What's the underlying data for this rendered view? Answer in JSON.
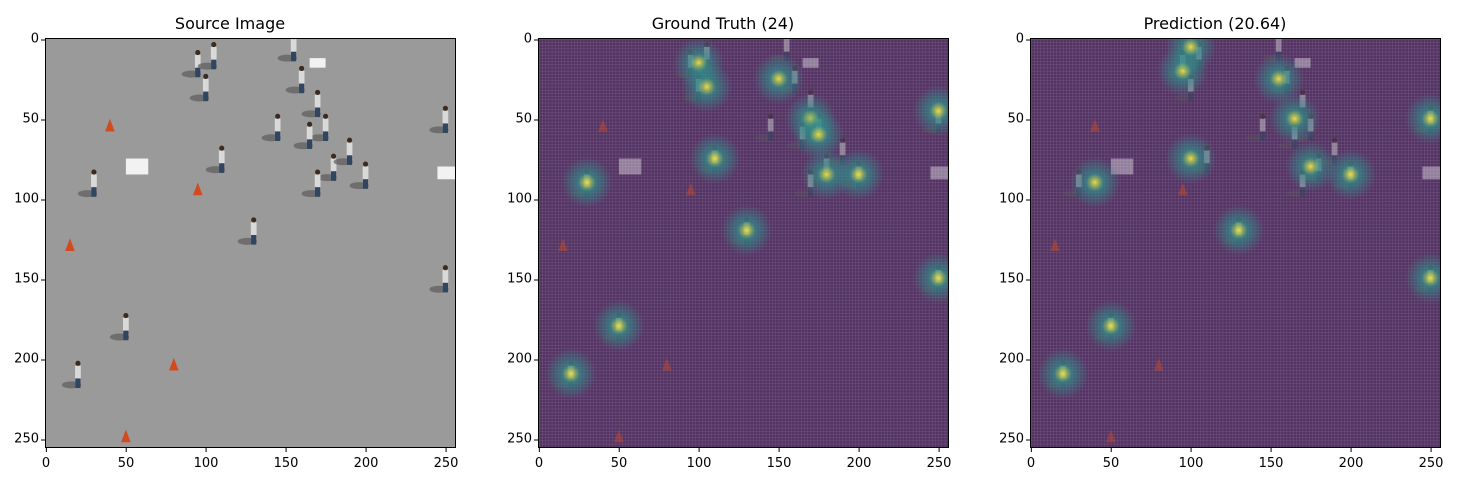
{
  "panels": [
    {
      "id": "source",
      "title": "Source Image",
      "yticks": [
        "0",
        "50",
        "100",
        "150",
        "200",
        "250"
      ],
      "xticks": [
        "0",
        "50",
        "100",
        "150",
        "200",
        "250"
      ]
    },
    {
      "id": "ground-truth",
      "title": "Ground Truth (24)",
      "yticks": [
        "0",
        "50",
        "100",
        "150",
        "200",
        "250"
      ],
      "xticks": [
        "0",
        "50",
        "100",
        "150",
        "200",
        "250"
      ]
    },
    {
      "id": "prediction",
      "title": "Prediction (20.64)",
      "yticks": [
        "0",
        "50",
        "100",
        "150",
        "200",
        "250"
      ],
      "xticks": [
        "0",
        "50",
        "100",
        "150",
        "200",
        "250"
      ]
    }
  ],
  "colors": {
    "ground": "#9a9a9a",
    "heatmap_low": "#3d1152",
    "heatmap_mid": "#2f8f8a",
    "heatmap_high": "#f4e342"
  },
  "chart_data": [
    {
      "type": "image",
      "title": "Source Image",
      "xlim": [
        0,
        255
      ],
      "ylim": [
        255,
        0
      ],
      "people": [
        [
          20,
          210
        ],
        [
          50,
          180
        ],
        [
          130,
          120
        ],
        [
          30,
          90
        ],
        [
          110,
          75
        ],
        [
          145,
          55
        ],
        [
          160,
          25
        ],
        [
          170,
          40
        ],
        [
          180,
          80
        ],
        [
          170,
          90
        ],
        [
          175,
          55
        ],
        [
          190,
          70
        ],
        [
          200,
          85
        ],
        [
          250,
          150
        ],
        [
          250,
          50
        ],
        [
          95,
          15
        ],
        [
          100,
          30
        ],
        [
          105,
          10
        ],
        [
          155,
          5
        ],
        [
          165,
          60
        ]
      ],
      "cones": [
        [
          15,
          130
        ],
        [
          80,
          205
        ],
        [
          95,
          95
        ],
        [
          40,
          55
        ],
        [
          50,
          250
        ]
      ]
    },
    {
      "type": "heatmap",
      "title": "Ground Truth (24)",
      "count": 24,
      "xlim": [
        0,
        255
      ],
      "ylim": [
        255,
        0
      ],
      "peaks": [
        [
          20,
          210
        ],
        [
          50,
          180
        ],
        [
          130,
          120
        ],
        [
          30,
          90
        ],
        [
          110,
          75
        ],
        [
          150,
          25
        ],
        [
          170,
          50
        ],
        [
          175,
          60
        ],
        [
          180,
          85
        ],
        [
          200,
          85
        ],
        [
          250,
          150
        ],
        [
          250,
          45
        ],
        [
          100,
          15
        ],
        [
          105,
          30
        ]
      ]
    },
    {
      "type": "heatmap",
      "title": "Prediction (20.64)",
      "count": 20.64,
      "xlim": [
        0,
        255
      ],
      "ylim": [
        255,
        0
      ],
      "peaks": [
        [
          20,
          210
        ],
        [
          50,
          180
        ],
        [
          130,
          120
        ],
        [
          40,
          90
        ],
        [
          100,
          75
        ],
        [
          155,
          25
        ],
        [
          165,
          50
        ],
        [
          175,
          80
        ],
        [
          200,
          85
        ],
        [
          250,
          150
        ],
        [
          250,
          50
        ],
        [
          95,
          20
        ],
        [
          100,
          5
        ]
      ]
    }
  ]
}
